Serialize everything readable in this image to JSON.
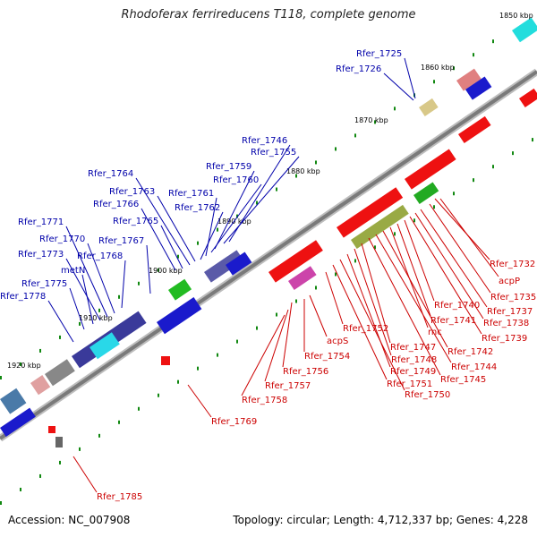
{
  "title": "Rhodoferax ferrireducens T118, complete genome",
  "footer": {
    "accession": "Accession: NC_007908",
    "summary": "Topology: circular; Length: 4,712,337 bp; Genes: 4,228"
  },
  "colors": {
    "forward_label": "#0000aa",
    "reverse_label": "#cc0000",
    "forward_gene": "#1010ee",
    "reverse_gene": "#ee1111",
    "backbone": "#8a8a8a",
    "tick": "#118811"
  },
  "ticks": [
    "1850 kbp",
    "1860 kbp",
    "1870 kbp",
    "1880 kbp",
    "1890 kbp",
    "1900 kbp",
    "1910 kbp",
    "1920 kbp"
  ],
  "forward_genes": [
    "Rfer_1725",
    "Rfer_1726",
    "Rfer_1746",
    "Rfer_1755",
    "Rfer_1759",
    "Rfer_1760",
    "Rfer_1761",
    "Rfer_1762",
    "Rfer_1763",
    "Rfer_1764",
    "Rfer_1765",
    "Rfer_1766",
    "Rfer_1767",
    "Rfer_1768",
    "Rfer_1770",
    "Rfer_1771",
    "Rfer_1773",
    "metN",
    "Rfer_1775",
    "Rfer_1778"
  ],
  "reverse_genes": [
    "Rfer_1732",
    "acpP",
    "Rfer_1735",
    "Rfer_1737",
    "Rfer_1738",
    "Rfer_1739",
    "Rfer_1740",
    "Rfer_1741",
    "rnc",
    "Rfer_1742",
    "Rfer_1744",
    "Rfer_1745",
    "Rfer_1747",
    "Rfer_1748",
    "Rfer_1749",
    "Rfer_1750",
    "Rfer_1751",
    "Rfer_1752",
    "acpS",
    "Rfer_1754",
    "Rfer_1756",
    "Rfer_1757",
    "Rfer_1758",
    "Rfer_1769",
    "Rfer_1785"
  ]
}
